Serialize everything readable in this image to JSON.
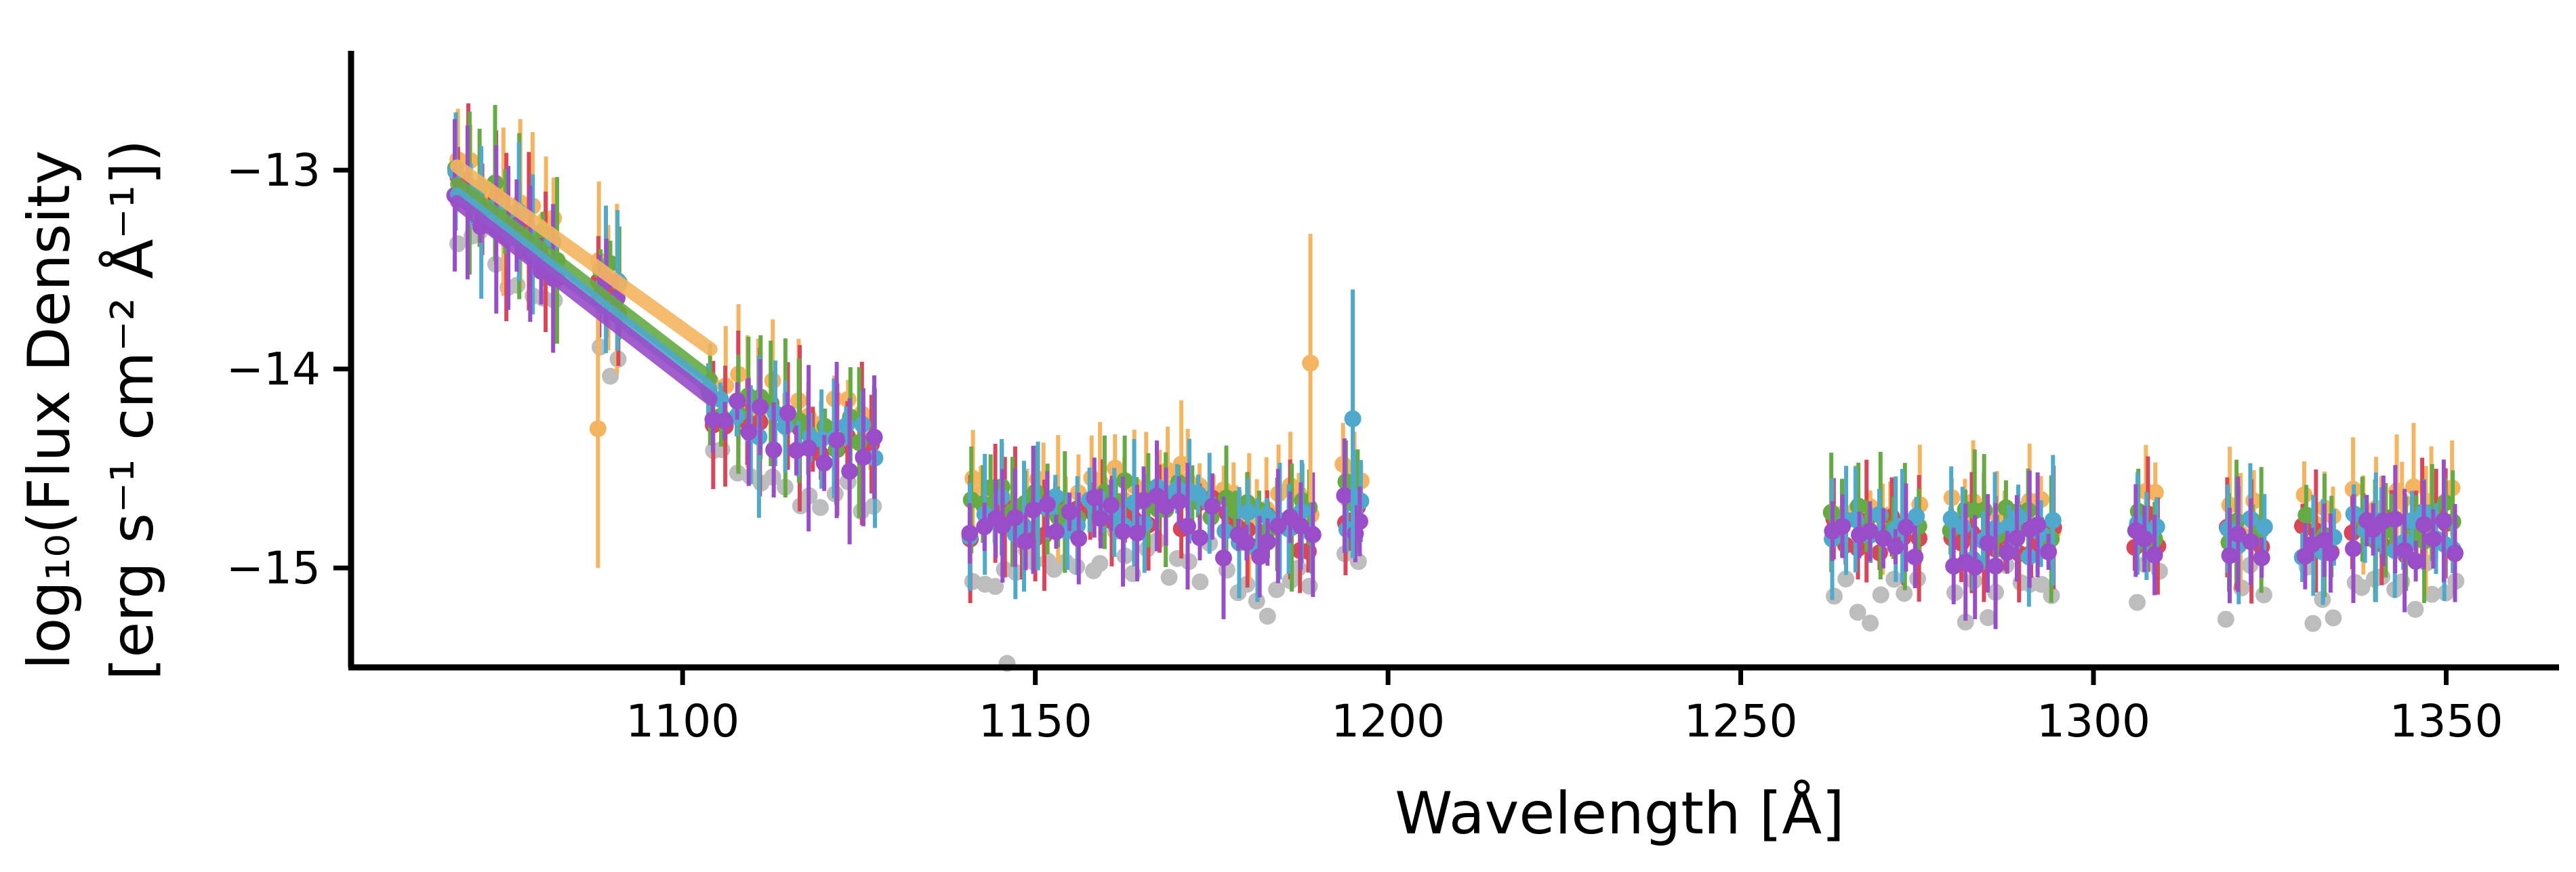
{
  "chart_data": {
    "type": "scatter",
    "xlabel": "Wavelength [Å]",
    "ylabel_line1": "log₁₀(Flux Density",
    "ylabel_line2": "[erg s⁻¹ cm⁻²  Å⁻¹])",
    "xlim": [
      1053,
      1366
    ],
    "ylim": [
      -15.5,
      -12.4
    ],
    "x_ticks": [
      1100,
      1150,
      1200,
      1250,
      1300,
      1350
    ],
    "y_ticks": [
      -13,
      -14,
      -15
    ],
    "x_tick_labels": [
      "1100",
      "1150",
      "1200",
      "1250",
      "1300",
      "1350"
    ],
    "y_tick_labels": [
      "−13",
      "−14",
      "−15"
    ],
    "grid": false,
    "legend": "none",
    "colors": {
      "gray": "#bdbdbd",
      "orange": "#f5b45f",
      "red": "#d9465a",
      "green": "#66aa44",
      "blue": "#4fa9cc",
      "purple": "#9a4dc9"
    },
    "fit_lines": [
      {
        "color": "orange",
        "x": [
          1068,
          1104
        ],
        "y": [
          -12.98,
          -13.9
        ]
      },
      {
        "color": "green",
        "x": [
          1068,
          1104
        ],
        "y": [
          -13.07,
          -14.05
        ]
      },
      {
        "color": "blue",
        "x": [
          1068,
          1104
        ],
        "y": [
          -13.12,
          -14.1
        ]
      },
      {
        "color": "purple",
        "x": [
          1068,
          1104
        ],
        "y": [
          -13.16,
          -14.15
        ]
      }
    ],
    "segments": [
      {
        "x0": 1068,
        "x1": 1082,
        "n": 9,
        "base": -13.05,
        "slope": -0.026
      },
      {
        "x0": 1088,
        "x1": 1091,
        "n": 3,
        "base": -13.55,
        "slope": -0.026
      },
      {
        "x0": 1104,
        "x1": 1127,
        "n": 14,
        "base": -14.15,
        "slope": -0.01
      },
      {
        "x0": 1141,
        "x1": 1156,
        "n": 11,
        "base": -14.72,
        "slope": 0
      },
      {
        "x0": 1158,
        "x1": 1175,
        "n": 12,
        "base": -14.68,
        "slope": 0
      },
      {
        "x0": 1177,
        "x1": 1189,
        "n": 9,
        "base": -14.78,
        "slope": 0
      },
      {
        "x0": 1194,
        "x1": 1196,
        "n": 3,
        "base": -14.68,
        "slope": 0
      },
      {
        "x0": 1263,
        "x1": 1275,
        "n": 8,
        "base": -14.8,
        "slope": 0
      },
      {
        "x0": 1280,
        "x1": 1294,
        "n": 10,
        "base": -14.83,
        "slope": 0
      },
      {
        "x0": 1306,
        "x1": 1309,
        "n": 3,
        "base": -14.8,
        "slope": 0
      },
      {
        "x0": 1319,
        "x1": 1324,
        "n": 4,
        "base": -14.82,
        "slope": 0
      },
      {
        "x0": 1330,
        "x1": 1334,
        "n": 4,
        "base": -14.82,
        "slope": 0
      },
      {
        "x0": 1337,
        "x1": 1351,
        "n": 11,
        "base": -14.8,
        "slope": 0
      }
    ],
    "series_offsets": {
      "orange": 0.1,
      "red": -0.03,
      "green": 0.03,
      "blue": -0.02,
      "purple": -0.06,
      "gray": -0.3
    },
    "outliers": [
      {
        "color": "orange",
        "x": 1088,
        "y": -14.3
      },
      {
        "color": "orange",
        "x": 1189,
        "y": -13.97
      },
      {
        "color": "blue",
        "x": 1195,
        "y": -14.25
      },
      {
        "color": "gray",
        "x": 1146,
        "y": -15.48
      }
    ]
  }
}
